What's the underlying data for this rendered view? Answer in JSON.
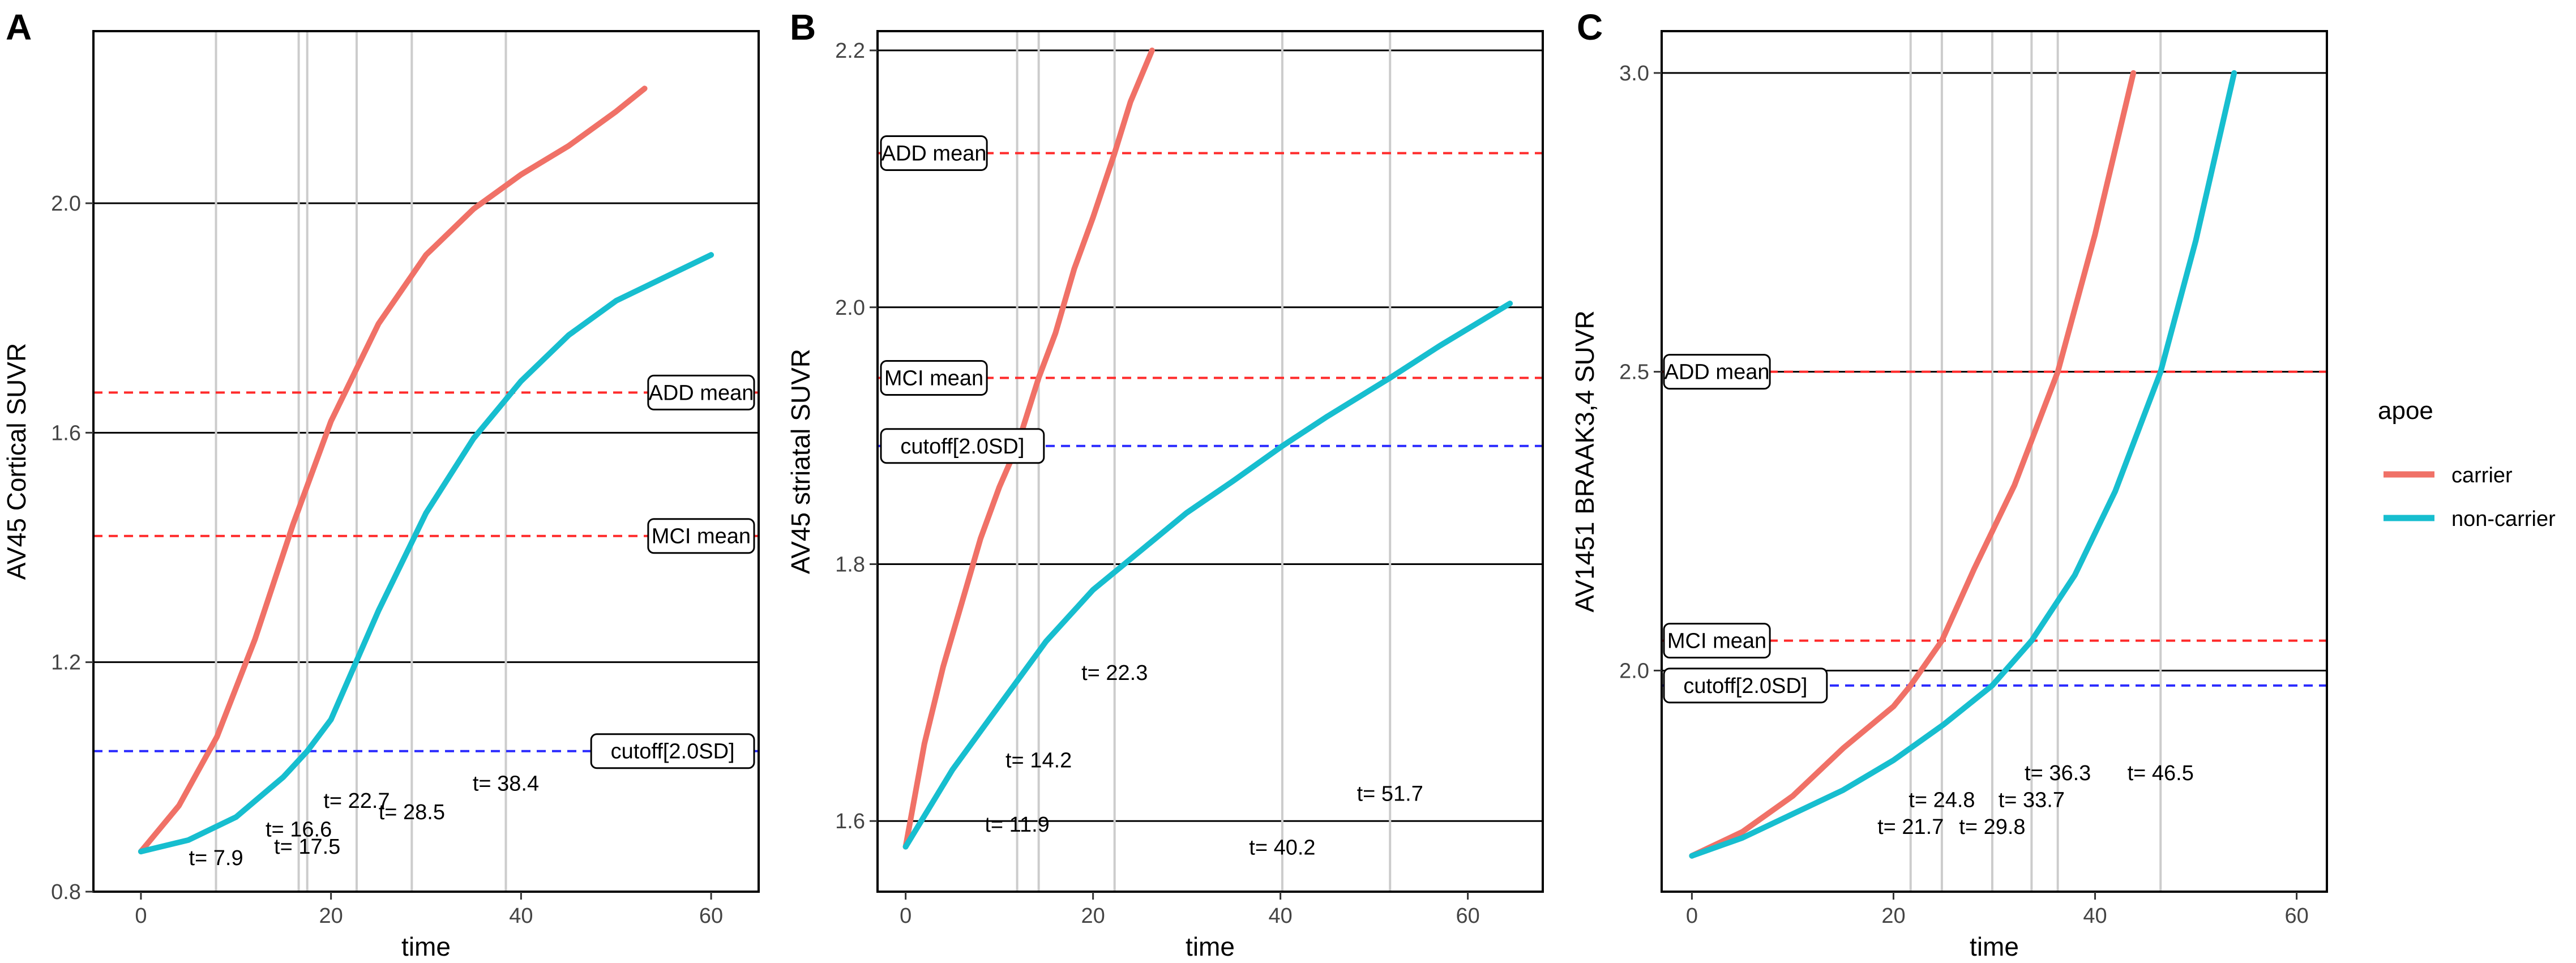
{
  "chart_data": [
    {
      "type": "line",
      "panel": "A",
      "title": "",
      "xlabel": "time",
      "ylabel": "AV45 Cortical SUVR",
      "xlim": [
        -5,
        65
      ],
      "ylim": [
        0.8,
        2.3
      ],
      "xticks": [
        0,
        20,
        40,
        60
      ],
      "yticks": [
        0.8,
        1.2,
        1.6,
        2.0
      ],
      "xtick_labels": [
        "0",
        "20",
        "40",
        "60"
      ],
      "ytick_labels": [
        "0.8",
        "1.2",
        "1.6",
        "2.0"
      ],
      "solid_hlines": [
        1.2,
        1.6,
        2.0
      ],
      "ref_lines": [
        {
          "label": "ADD mean",
          "y": 1.67,
          "color": "#ff2a2a"
        },
        {
          "label": "MCI mean",
          "y": 1.42,
          "color": "#ff2a2a"
        },
        {
          "label": "cutoff[2.0SD]",
          "y": 1.045,
          "color": "#2a2aff"
        }
      ],
      "series": [
        {
          "name": "carrier",
          "x": [
            0,
            4,
            8,
            12,
            16,
            20,
            25,
            30,
            35,
            40,
            45,
            50,
            53
          ],
          "y": [
            0.87,
            0.95,
            1.07,
            1.24,
            1.44,
            1.62,
            1.79,
            1.91,
            1.99,
            2.05,
            2.1,
            2.16,
            2.2
          ]
        },
        {
          "name": "non-carrier",
          "x": [
            0,
            5,
            10,
            15,
            17.5,
            20,
            25,
            30,
            35,
            40,
            45,
            50,
            55,
            60
          ],
          "y": [
            0.87,
            0.89,
            0.93,
            1.0,
            1.045,
            1.1,
            1.29,
            1.46,
            1.59,
            1.69,
            1.77,
            1.83,
            1.87,
            1.91
          ]
        }
      ],
      "vlines": [
        7.9,
        16.6,
        17.5,
        22.7,
        28.5,
        38.4
      ],
      "time_labels": [
        {
          "text": "t= 7.9",
          "x": 7.9,
          "y": 0.86
        },
        {
          "text": "t= 16.6",
          "x": 16.6,
          "y": 0.91
        },
        {
          "text": "t= 17.5",
          "x": 17.5,
          "y": 0.88
        },
        {
          "text": "t= 22.7",
          "x": 22.7,
          "y": 0.96
        },
        {
          "text": "t= 28.5",
          "x": 28.5,
          "y": 0.94
        },
        {
          "text": "t= 38.4",
          "x": 38.4,
          "y": 0.99
        }
      ]
    },
    {
      "type": "line",
      "panel": "B",
      "title": "",
      "xlabel": "time",
      "ylabel": "AV45 striatal SUVR",
      "xlim": [
        -3,
        68
      ],
      "ylim": [
        1.545,
        2.215
      ],
      "xticks": [
        0,
        20,
        40,
        60
      ],
      "yticks": [
        1.6,
        1.8,
        2.0,
        2.2
      ],
      "xtick_labels": [
        "0",
        "20",
        "40",
        "60"
      ],
      "ytick_labels": [
        "1.6",
        "1.8",
        "2.0",
        "2.2"
      ],
      "solid_hlines": [
        1.6,
        1.8,
        2.0,
        2.2
      ],
      "ref_lines": [
        {
          "label": "ADD mean",
          "y": 2.12,
          "color": "#ff2a2a"
        },
        {
          "label": "MCI mean",
          "y": 1.945,
          "color": "#ff2a2a"
        },
        {
          "label": "cutoff[2.0SD]",
          "y": 1.892,
          "color": "#2a2aff"
        }
      ],
      "series": [
        {
          "name": "carrier",
          "x": [
            0,
            2,
            4,
            6,
            8,
            10,
            11.9,
            14.2,
            16,
            18,
            20,
            22.3,
            24,
            26.3
          ],
          "y": [
            1.58,
            1.66,
            1.72,
            1.77,
            1.82,
            1.86,
            1.892,
            1.945,
            1.98,
            2.03,
            2.07,
            2.12,
            2.16,
            2.2
          ]
        },
        {
          "name": "non-carrier",
          "x": [
            0,
            5,
            10,
            15,
            20,
            25,
            30,
            35,
            40.2,
            45,
            51.7,
            57,
            64.5
          ],
          "y": [
            1.58,
            1.64,
            1.69,
            1.74,
            1.78,
            1.81,
            1.84,
            1.865,
            1.892,
            1.915,
            1.945,
            1.97,
            2.003
          ]
        }
      ],
      "vlines": [
        11.9,
        14.2,
        22.3,
        40.2,
        51.7
      ],
      "time_labels": [
        {
          "text": "t= 11.9",
          "x": 11.9,
          "y": 1.598
        },
        {
          "text": "t= 14.2",
          "x": 14.2,
          "y": 1.648
        },
        {
          "text": "t= 22.3",
          "x": 22.3,
          "y": 1.716
        },
        {
          "text": "t= 40.2",
          "x": 40.2,
          "y": 1.58
        },
        {
          "text": "t= 51.7",
          "x": 51.7,
          "y": 1.622
        }
      ]
    },
    {
      "type": "line",
      "panel": "C",
      "title": "",
      "xlabel": "time",
      "ylabel": "AV1451 BRAAK3,4 SUVR",
      "xlim": [
        -3,
        63
      ],
      "ylim": [
        1.63,
        3.07
      ],
      "xticks": [
        0,
        20,
        40,
        60
      ],
      "yticks": [
        2.0,
        2.5,
        3.0
      ],
      "xtick_labels": [
        "0",
        "20",
        "40",
        "60"
      ],
      "ytick_labels": [
        "2.0",
        "2.5",
        "3.0"
      ],
      "solid_hlines": [
        2.0,
        2.5,
        3.0
      ],
      "ref_lines": [
        {
          "label": "ADD mean",
          "y": 2.5,
          "color": "#ff2a2a"
        },
        {
          "label": "MCI mean",
          "y": 2.05,
          "color": "#ff2a2a"
        },
        {
          "label": "cutoff[2.0SD]",
          "y": 1.975,
          "color": "#2a2aff"
        }
      ],
      "series": [
        {
          "name": "carrier",
          "x": [
            0,
            5,
            10,
            15,
            20,
            21.7,
            24.8,
            28,
            32,
            36.3,
            40,
            43.8
          ],
          "y": [
            1.69,
            1.73,
            1.79,
            1.87,
            1.94,
            1.975,
            2.05,
            2.17,
            2.31,
            2.5,
            2.73,
            3.0
          ]
        },
        {
          "name": "non-carrier",
          "x": [
            0,
            5,
            10,
            15,
            20,
            25,
            29.8,
            33.7,
            38,
            42,
            46.5,
            50,
            53.8
          ],
          "y": [
            1.69,
            1.72,
            1.76,
            1.8,
            1.85,
            1.91,
            1.975,
            2.05,
            2.16,
            2.3,
            2.5,
            2.72,
            3.0
          ]
        }
      ],
      "vlines": [
        21.7,
        24.8,
        29.8,
        33.7,
        36.3,
        46.5
      ],
      "time_labels": [
        {
          "text": "t= 21.7",
          "x": 21.7,
          "y": 1.74
        },
        {
          "text": "t= 24.8",
          "x": 24.8,
          "y": 1.785
        },
        {
          "text": "t= 29.8",
          "x": 29.8,
          "y": 1.74
        },
        {
          "text": "t= 33.7",
          "x": 33.7,
          "y": 1.785
        },
        {
          "text": "t= 36.3",
          "x": 36.3,
          "y": 1.83
        },
        {
          "text": "t= 46.5",
          "x": 46.5,
          "y": 1.83
        }
      ]
    }
  ],
  "panel_letters": [
    "A",
    "B",
    "C"
  ],
  "legend": {
    "title": "apoe",
    "position": "right",
    "items": [
      {
        "label": "carrier",
        "color": "#f07167"
      },
      {
        "label": "non-carrier",
        "color": "#17becf"
      }
    ]
  },
  "colors": {
    "carrier": "#f07167",
    "non_carrier": "#17becf",
    "ref_red": "#ff2a2a",
    "ref_blue": "#2a2aff",
    "vline": "#cccccc",
    "grid": "#000000"
  }
}
